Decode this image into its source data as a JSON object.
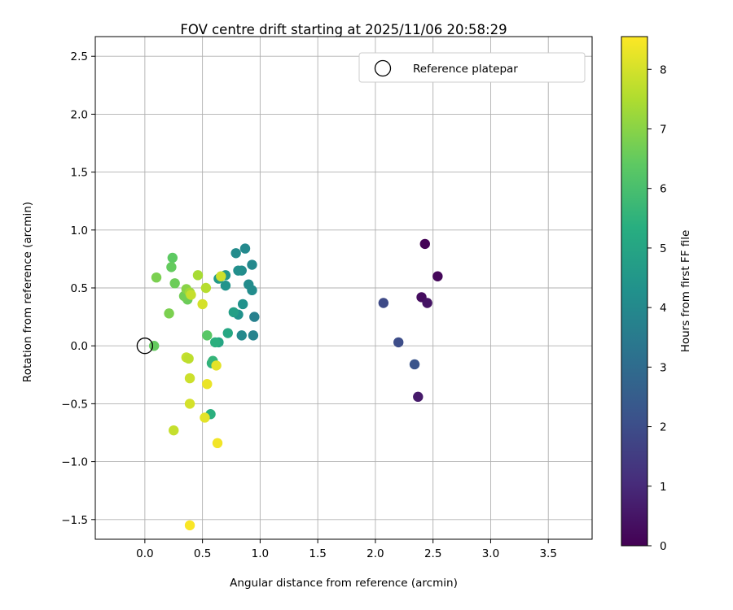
{
  "chart_data": {
    "type": "scatter",
    "title": "FOV centre drift starting at 2025/11/06 20:58:29",
    "xlabel": "Angular distance from reference (arcmin)",
    "ylabel": "Rotation from reference (arcmin)",
    "xlim": [
      -0.43,
      3.88
    ],
    "ylim": [
      -1.67,
      2.67
    ],
    "xticks": [
      0.0,
      0.5,
      1.0,
      1.5,
      2.0,
      2.5,
      3.0,
      3.5
    ],
    "yticks": [
      -1.5,
      -1.0,
      -0.5,
      0.0,
      0.5,
      1.0,
      1.5,
      2.0,
      2.5
    ],
    "xtick_labels": [
      "0.0",
      "0.5",
      "1.0",
      "1.5",
      "2.0",
      "2.5",
      "3.0",
      "3.5"
    ],
    "ytick_labels": [
      "−1.5",
      "−1.0",
      "−0.5",
      "0.0",
      "0.5",
      "1.0",
      "1.5",
      "2.0",
      "2.5"
    ],
    "grid": true,
    "legend": {
      "position": "top-right",
      "entries": [
        "Reference platepar"
      ]
    },
    "reference": {
      "x": 0.0,
      "y": 0.0,
      "label": "Reference platepar"
    },
    "colorbar": {
      "label": "Hours from first FF file",
      "range": [
        0,
        8.55
      ],
      "ticks": [
        0,
        1,
        2,
        3,
        4,
        5,
        6,
        7,
        8
      ],
      "colormap": "viridis"
    },
    "points": [
      {
        "x": 2.43,
        "y": 0.88,
        "h": 0.05
      },
      {
        "x": 2.54,
        "y": 0.6,
        "h": 0.15
      },
      {
        "x": 2.4,
        "y": 0.42,
        "h": 0.3
      },
      {
        "x": 2.45,
        "y": 0.37,
        "h": 0.45
      },
      {
        "x": 2.37,
        "y": -0.44,
        "h": 0.6
      },
      {
        "x": 2.07,
        "y": 0.37,
        "h": 1.9
      },
      {
        "x": 2.2,
        "y": 0.03,
        "h": 2.0
      },
      {
        "x": 2.34,
        "y": -0.16,
        "h": 2.2
      },
      {
        "x": 0.95,
        "y": 0.25,
        "h": 3.7
      },
      {
        "x": 0.94,
        "y": 0.09,
        "h": 3.8
      },
      {
        "x": 0.84,
        "y": 0.09,
        "h": 4.0
      },
      {
        "x": 0.87,
        "y": 0.84,
        "h": 4.0
      },
      {
        "x": 0.79,
        "y": 0.8,
        "h": 4.1
      },
      {
        "x": 0.93,
        "y": 0.7,
        "h": 4.0
      },
      {
        "x": 0.84,
        "y": 0.65,
        "h": 4.1
      },
      {
        "x": 0.81,
        "y": 0.65,
        "h": 4.2
      },
      {
        "x": 0.9,
        "y": 0.53,
        "h": 4.1
      },
      {
        "x": 0.93,
        "y": 0.48,
        "h": 4.1
      },
      {
        "x": 0.85,
        "y": 0.36,
        "h": 4.3
      },
      {
        "x": 0.81,
        "y": 0.27,
        "h": 4.3
      },
      {
        "x": 0.7,
        "y": 0.52,
        "h": 4.4
      },
      {
        "x": 0.7,
        "y": 0.61,
        "h": 4.5
      },
      {
        "x": 0.64,
        "y": 0.58,
        "h": 4.6
      },
      {
        "x": 0.77,
        "y": 0.29,
        "h": 4.8
      },
      {
        "x": 0.72,
        "y": 0.11,
        "h": 5.1
      },
      {
        "x": 0.64,
        "y": 0.03,
        "h": 5.0
      },
      {
        "x": 0.61,
        "y": 0.03,
        "h": 5.4
      },
      {
        "x": 0.58,
        "y": -0.15,
        "h": 5.5
      },
      {
        "x": 0.59,
        "y": -0.13,
        "h": 5.6
      },
      {
        "x": 0.57,
        "y": -0.59,
        "h": 5.4
      },
      {
        "x": 0.54,
        "y": 0.09,
        "h": 6.3
      },
      {
        "x": 0.24,
        "y": 0.76,
        "h": 6.4
      },
      {
        "x": 0.23,
        "y": 0.68,
        "h": 6.5
      },
      {
        "x": 0.26,
        "y": 0.54,
        "h": 6.6
      },
      {
        "x": 0.37,
        "y": 0.4,
        "h": 6.6
      },
      {
        "x": 0.34,
        "y": 0.43,
        "h": 6.7
      },
      {
        "x": 0.21,
        "y": 0.28,
        "h": 6.8
      },
      {
        "x": 0.1,
        "y": 0.59,
        "h": 6.8
      },
      {
        "x": 0.08,
        "y": 0.0,
        "h": 6.5
      },
      {
        "x": 0.36,
        "y": 0.49,
        "h": 7.0
      },
      {
        "x": 0.39,
        "y": 0.46,
        "h": 7.3
      },
      {
        "x": 0.46,
        "y": 0.61,
        "h": 7.4
      },
      {
        "x": 0.53,
        "y": 0.5,
        "h": 7.6
      },
      {
        "x": 0.4,
        "y": 0.44,
        "h": 7.8
      },
      {
        "x": 0.5,
        "y": 0.36,
        "h": 8.0
      },
      {
        "x": 0.66,
        "y": 0.6,
        "h": 7.9
      },
      {
        "x": 0.25,
        "y": -0.73,
        "h": 7.8
      },
      {
        "x": 0.36,
        "y": -0.1,
        "h": 7.8
      },
      {
        "x": 0.38,
        "y": -0.11,
        "h": 7.7
      },
      {
        "x": 0.39,
        "y": -0.28,
        "h": 7.9
      },
      {
        "x": 0.39,
        "y": -0.5,
        "h": 8.0
      },
      {
        "x": 0.62,
        "y": -0.17,
        "h": 8.2
      },
      {
        "x": 0.54,
        "y": -0.33,
        "h": 8.3
      },
      {
        "x": 0.52,
        "y": -0.62,
        "h": 8.2
      },
      {
        "x": 0.63,
        "y": -0.84,
        "h": 8.4
      },
      {
        "x": 0.39,
        "y": -1.55,
        "h": 8.5
      }
    ]
  }
}
